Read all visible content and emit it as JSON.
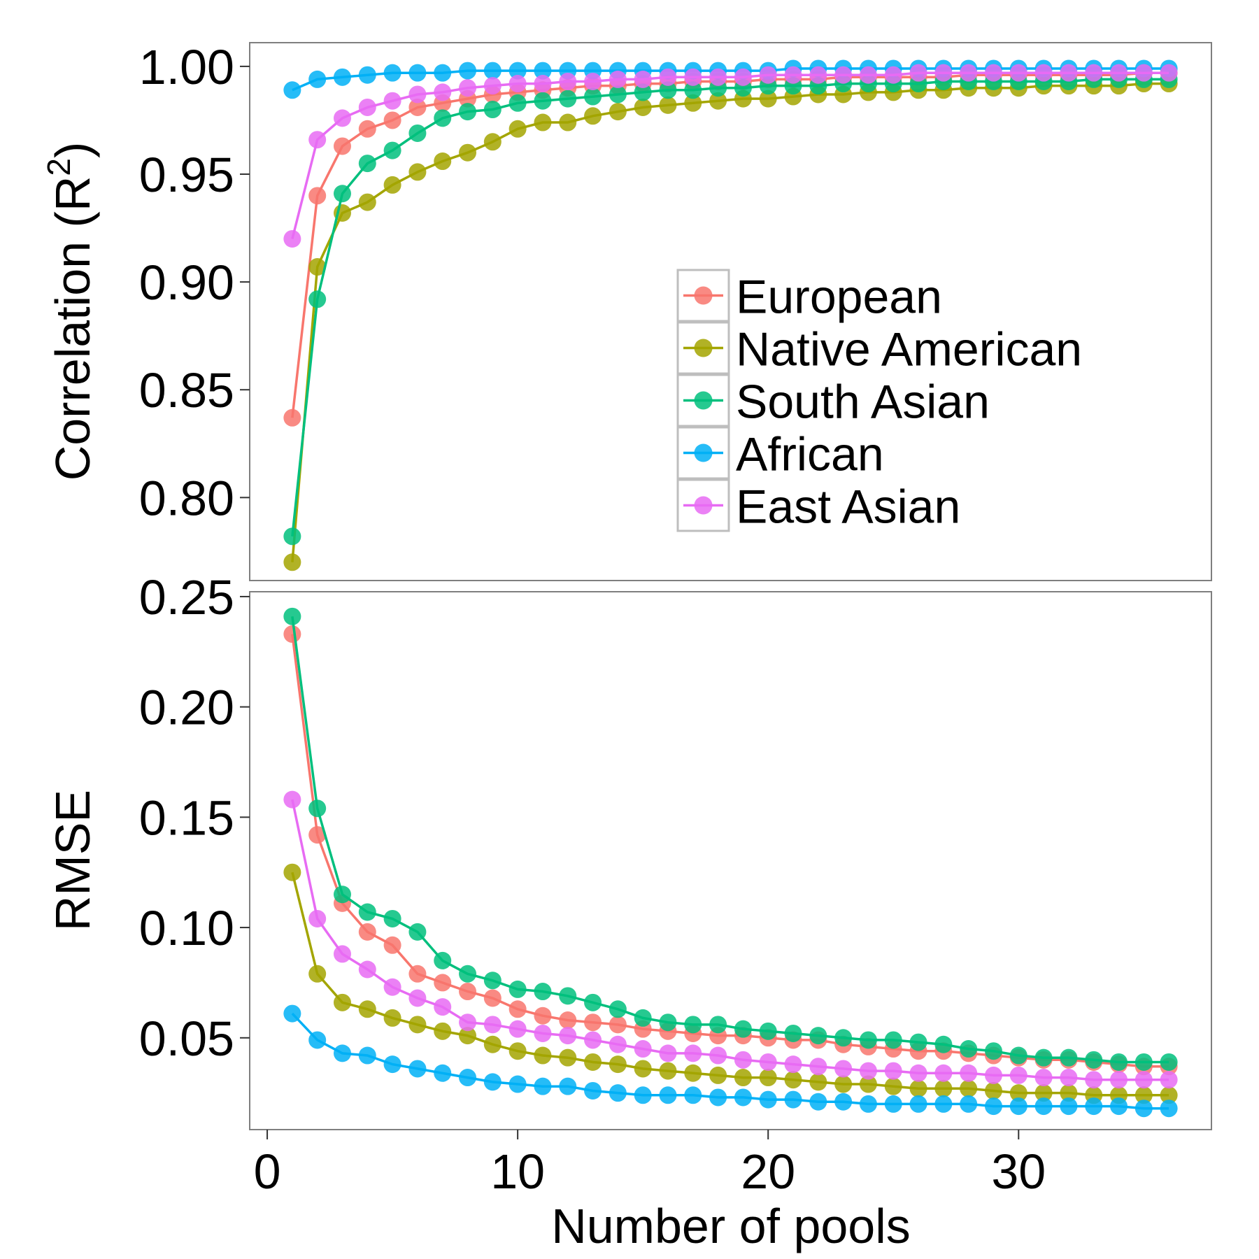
{
  "colors": {
    "European": "#F8766D",
    "Native American": "#A3A500",
    "South Asian": "#00BF7D",
    "African": "#00B0F6",
    "East Asian": "#E76BF3",
    "frame": "#7f7f7f",
    "legend_border": "#bebebe"
  },
  "chart_data": {
    "type": "line",
    "markers": "filled-circle",
    "x": [
      1,
      2,
      3,
      4,
      5,
      6,
      7,
      8,
      9,
      10,
      11,
      12,
      13,
      14,
      15,
      16,
      17,
      18,
      19,
      20,
      21,
      22,
      23,
      24,
      25,
      26,
      27,
      28,
      29,
      30,
      31,
      32,
      33,
      34,
      35,
      36
    ],
    "xlabel": "Number of pools",
    "x_ticks": [
      0,
      10,
      20,
      30
    ],
    "x_tick_labels": [
      "0",
      "10",
      "20",
      "30"
    ],
    "xlim": [
      -0.7,
      37.7
    ],
    "legend": {
      "placement": "inside-top-panel-right",
      "entries": [
        "European",
        "Native American",
        "South Asian",
        "African",
        "East Asian"
      ]
    },
    "panels": [
      {
        "id": "correlation",
        "ylabel": "Correlation (R",
        "ylabel_superscript": "2",
        "ylabel_suffix": ")",
        "ylim": [
          0.7615,
          1.011
        ],
        "y_ticks": [
          0.8,
          0.85,
          0.9,
          0.95,
          1.0
        ],
        "y_tick_labels": [
          "0.80",
          "0.85",
          "0.90",
          "0.95",
          "1.00"
        ],
        "series": [
          {
            "name": "European",
            "values": [
              0.837,
              0.94,
              0.963,
              0.971,
              0.975,
              0.981,
              0.983,
              0.985,
              0.987,
              0.988,
              0.989,
              0.99,
              0.991,
              0.991,
              0.992,
              0.992,
              0.993,
              0.993,
              0.993,
              0.994,
              0.994,
              0.994,
              0.995,
              0.995,
              0.995,
              0.995,
              0.995,
              0.996,
              0.996,
              0.996,
              0.996,
              0.996,
              0.996,
              0.996,
              0.997,
              0.997
            ]
          },
          {
            "name": "Native American",
            "values": [
              0.77,
              0.907,
              0.932,
              0.937,
              0.945,
              0.951,
              0.956,
              0.96,
              0.965,
              0.971,
              0.974,
              0.974,
              0.977,
              0.979,
              0.981,
              0.982,
              0.983,
              0.984,
              0.985,
              0.985,
              0.986,
              0.987,
              0.987,
              0.988,
              0.988,
              0.989,
              0.989,
              0.99,
              0.99,
              0.99,
              0.991,
              0.991,
              0.991,
              0.991,
              0.992,
              0.992
            ]
          },
          {
            "name": "South Asian",
            "values": [
              0.782,
              0.892,
              0.941,
              0.955,
              0.961,
              0.969,
              0.976,
              0.979,
              0.98,
              0.983,
              0.984,
              0.985,
              0.986,
              0.987,
              0.988,
              0.989,
              0.989,
              0.99,
              0.99,
              0.991,
              0.991,
              0.991,
              0.992,
              0.992,
              0.992,
              0.992,
              0.993,
              0.993,
              0.993,
              0.993,
              0.993,
              0.993,
              0.994,
              0.994,
              0.994,
              0.994
            ]
          },
          {
            "name": "African",
            "values": [
              0.989,
              0.994,
              0.995,
              0.996,
              0.997,
              0.997,
              0.997,
              0.998,
              0.998,
              0.998,
              0.998,
              0.998,
              0.998,
              0.998,
              0.998,
              0.998,
              0.998,
              0.998,
              0.998,
              0.998,
              0.999,
              0.999,
              0.999,
              0.999,
              0.999,
              0.999,
              0.999,
              0.999,
              0.999,
              0.999,
              0.999,
              0.999,
              0.999,
              0.999,
              0.999,
              0.999
            ]
          },
          {
            "name": "East Asian",
            "values": [
              0.92,
              0.966,
              0.976,
              0.981,
              0.984,
              0.987,
              0.988,
              0.99,
              0.991,
              0.992,
              0.992,
              0.993,
              0.993,
              0.994,
              0.994,
              0.995,
              0.995,
              0.995,
              0.995,
              0.996,
              0.996,
              0.996,
              0.996,
              0.996,
              0.996,
              0.997,
              0.997,
              0.997,
              0.997,
              0.997,
              0.997,
              0.997,
              0.997,
              0.997,
              0.997,
              0.997
            ]
          }
        ]
      },
      {
        "id": "rmse",
        "ylabel": "RMSE",
        "ylim": [
          0.0084,
          0.2522
        ],
        "y_ticks": [
          0.05,
          0.1,
          0.15,
          0.2,
          0.25
        ],
        "y_tick_labels": [
          "0.05",
          "0.10",
          "0.15",
          "0.20",
          "0.25"
        ],
        "series": [
          {
            "name": "European",
            "values": [
              0.233,
              0.142,
              0.111,
              0.098,
              0.092,
              0.079,
              0.075,
              0.071,
              0.068,
              0.063,
              0.06,
              0.058,
              0.057,
              0.056,
              0.054,
              0.053,
              0.052,
              0.051,
              0.051,
              0.05,
              0.049,
              0.049,
              0.047,
              0.046,
              0.045,
              0.044,
              0.044,
              0.043,
              0.042,
              0.041,
              0.04,
              0.04,
              0.039,
              0.038,
              0.037,
              0.037
            ]
          },
          {
            "name": "Native American",
            "values": [
              0.125,
              0.079,
              0.066,
              0.063,
              0.059,
              0.056,
              0.053,
              0.051,
              0.047,
              0.044,
              0.042,
              0.041,
              0.039,
              0.038,
              0.036,
              0.035,
              0.034,
              0.033,
              0.032,
              0.032,
              0.031,
              0.03,
              0.029,
              0.029,
              0.028,
              0.027,
              0.027,
              0.027,
              0.026,
              0.025,
              0.025,
              0.025,
              0.024,
              0.024,
              0.024,
              0.024
            ]
          },
          {
            "name": "South Asian",
            "values": [
              0.241,
              0.154,
              0.115,
              0.107,
              0.104,
              0.098,
              0.085,
              0.079,
              0.076,
              0.072,
              0.071,
              0.069,
              0.066,
              0.063,
              0.059,
              0.057,
              0.056,
              0.056,
              0.054,
              0.053,
              0.052,
              0.051,
              0.05,
              0.049,
              0.049,
              0.048,
              0.047,
              0.045,
              0.044,
              0.042,
              0.041,
              0.041,
              0.04,
              0.039,
              0.039,
              0.039
            ]
          },
          {
            "name": "African",
            "values": [
              0.061,
              0.049,
              0.043,
              0.042,
              0.038,
              0.036,
              0.034,
              0.032,
              0.03,
              0.029,
              0.028,
              0.028,
              0.026,
              0.025,
              0.024,
              0.024,
              0.024,
              0.023,
              0.023,
              0.022,
              0.022,
              0.021,
              0.021,
              0.02,
              0.02,
              0.02,
              0.02,
              0.02,
              0.019,
              0.019,
              0.019,
              0.019,
              0.019,
              0.019,
              0.018,
              0.018
            ]
          },
          {
            "name": "East Asian",
            "values": [
              0.158,
              0.104,
              0.088,
              0.081,
              0.073,
              0.068,
              0.064,
              0.057,
              0.056,
              0.054,
              0.052,
              0.051,
              0.049,
              0.047,
              0.045,
              0.043,
              0.043,
              0.042,
              0.04,
              0.039,
              0.038,
              0.037,
              0.036,
              0.035,
              0.035,
              0.034,
              0.034,
              0.034,
              0.033,
              0.033,
              0.032,
              0.032,
              0.031,
              0.031,
              0.031,
              0.031
            ]
          }
        ]
      }
    ]
  }
}
